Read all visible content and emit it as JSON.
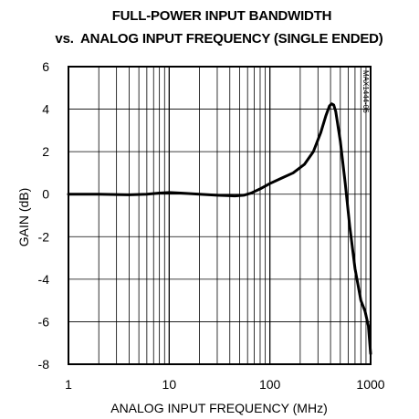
{
  "chart_data": {
    "type": "line",
    "title": "FULL-POWER INPUT BANDWIDTH",
    "subtitle": "vs.  ANALOG INPUT FREQUENCY (SINGLE ENDED)",
    "xlabel": "ANALOG INPUT FREQUENCY (MHz)",
    "ylabel": "GAIN (dB)",
    "xscale": "log",
    "xlim": [
      1,
      1000
    ],
    "ylim": [
      -8,
      6
    ],
    "xticks": [
      1,
      10,
      100,
      1000
    ],
    "xtick_labels": [
      "1",
      "10",
      "100",
      "1000"
    ],
    "yticks": [
      6,
      4,
      2,
      0,
      -2,
      -4,
      -6,
      -8
    ],
    "ytick_labels": [
      "6",
      "4",
      "2",
      "0",
      "-2",
      "-4",
      "-6",
      "-8"
    ],
    "grid": true,
    "annotation": "MAX1444-06",
    "series": [
      {
        "color": "#000000",
        "x": [
          1,
          2,
          4,
          6,
          8,
          10,
          13,
          20,
          30,
          45,
          55,
          65,
          80,
          100,
          130,
          170,
          220,
          270,
          320,
          360,
          390,
          410,
          430,
          450,
          500,
          560,
          620,
          700,
          800,
          880,
          950,
          1000
        ],
        "y": [
          0,
          0,
          -0.03,
          0,
          0.05,
          0.08,
          0.05,
          0,
          -0.05,
          -0.08,
          -0.05,
          0.05,
          0.25,
          0.5,
          0.75,
          1.0,
          1.4,
          2.0,
          2.9,
          3.7,
          4.15,
          4.25,
          4.2,
          3.9,
          2.5,
          0.5,
          -1.5,
          -3.5,
          -5.0,
          -5.5,
          -6.2,
          -7.5
        ]
      }
    ]
  }
}
